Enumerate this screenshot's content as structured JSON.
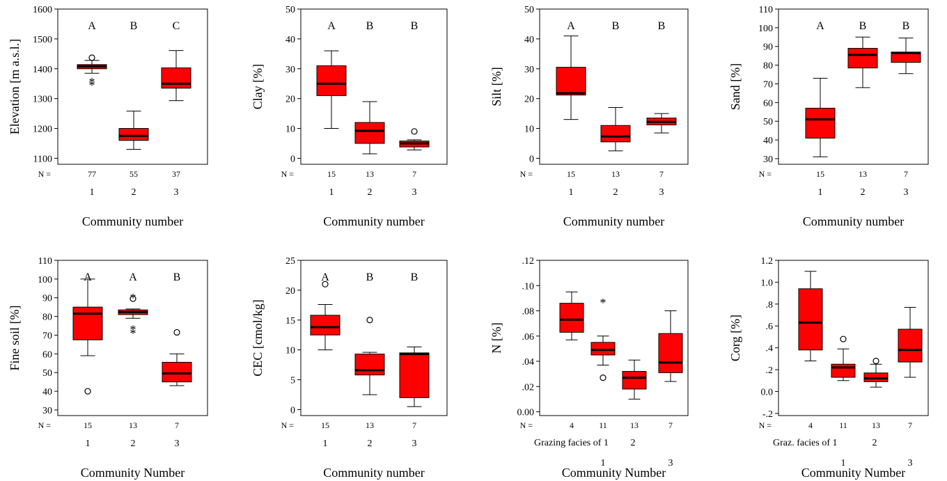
{
  "style": {
    "box_fill": "#ff0000",
    "line_color": "#000000",
    "background": "#ffffff"
  },
  "chart_data": [
    {
      "type": "boxplot",
      "ylabel": "Elevation [m a.s.l.]",
      "xlabel": "Community number",
      "ylim": [
        1080,
        1600
      ],
      "yticks": [
        "1100",
        "1200",
        "1300",
        "1400",
        "1500",
        "1600"
      ],
      "n_label": "N =",
      "x_text": "",
      "groups": [
        {
          "label": "1",
          "n": "77",
          "letter": "A",
          "box": {
            "whisker_low": 1385,
            "q1": 1400,
            "median": 1408,
            "q3": 1414,
            "whisker_high": 1428
          },
          "outliers": [
            1437
          ],
          "extremes": [
            1352,
            1362
          ]
        },
        {
          "label": "2",
          "n": "55",
          "letter": "B",
          "box": {
            "whisker_low": 1130,
            "q1": 1160,
            "median": 1175,
            "q3": 1200,
            "whisker_high": 1258
          },
          "outliers": [],
          "extremes": []
        },
        {
          "label": "3",
          "n": "37",
          "letter": "C",
          "box": {
            "whisker_low": 1293,
            "q1": 1335,
            "median": 1350,
            "q3": 1403,
            "whisker_high": 1461
          },
          "outliers": [],
          "extremes": []
        }
      ]
    },
    {
      "type": "boxplot",
      "ylabel": "Clay [%]",
      "xlabel": "Community number",
      "ylim": [
        -2,
        50
      ],
      "yticks": [
        "0",
        "10",
        "20",
        "30",
        "40",
        "50"
      ],
      "n_label": "N =",
      "x_text": "",
      "groups": [
        {
          "label": "1",
          "n": "15",
          "letter": "A",
          "box": {
            "whisker_low": 10,
            "q1": 21,
            "median": 25,
            "q3": 31,
            "whisker_high": 36
          },
          "outliers": [],
          "extremes": []
        },
        {
          "label": "2",
          "n": "13",
          "letter": "B",
          "box": {
            "whisker_low": 1.5,
            "q1": 5,
            "median": 9.2,
            "q3": 12,
            "whisker_high": 19
          },
          "outliers": [],
          "extremes": []
        },
        {
          "label": "3",
          "n": "7",
          "letter": "B",
          "box": {
            "whisker_low": 2.8,
            "q1": 3.8,
            "median": 5,
            "q3": 5.8,
            "whisker_high": 6.2
          },
          "outliers": [
            9
          ],
          "extremes": []
        }
      ]
    },
    {
      "type": "boxplot",
      "ylabel": "Silt [%]",
      "xlabel": "Community number",
      "ylim": [
        -2,
        50
      ],
      "yticks": [
        "0",
        "10",
        "20",
        "30",
        "40",
        "50"
      ],
      "n_label": "N =",
      "x_text": "",
      "groups": [
        {
          "label": "1",
          "n": "15",
          "letter": "A",
          "box": {
            "whisker_low": 13,
            "q1": 21.2,
            "median": 21.8,
            "q3": 30.5,
            "whisker_high": 41
          },
          "outliers": [],
          "extremes": []
        },
        {
          "label": "2",
          "n": "13",
          "letter": "B",
          "box": {
            "whisker_low": 2.5,
            "q1": 5.5,
            "median": 7.3,
            "q3": 11,
            "whisker_high": 17
          },
          "outliers": [],
          "extremes": []
        },
        {
          "label": "3",
          "n": "7",
          "letter": "B",
          "box": {
            "whisker_low": 8.5,
            "q1": 11.2,
            "median": 12.2,
            "q3": 13.5,
            "whisker_high": 15
          },
          "outliers": [],
          "extremes": []
        }
      ]
    },
    {
      "type": "boxplot",
      "ylabel": "Sand [%]",
      "xlabel": "Community number",
      "ylim": [
        27,
        110
      ],
      "yticks": [
        "30",
        "40",
        "50",
        "60",
        "70",
        "80",
        "90",
        "100",
        "110"
      ],
      "n_label": "N =",
      "x_text": "",
      "groups": [
        {
          "label": "1",
          "n": "15",
          "letter": "A",
          "box": {
            "whisker_low": 31,
            "q1": 41,
            "median": 51,
            "q3": 57,
            "whisker_high": 73
          },
          "outliers": [],
          "extremes": []
        },
        {
          "label": "2",
          "n": "13",
          "letter": "B",
          "box": {
            "whisker_low": 68,
            "q1": 78.5,
            "median": 85.5,
            "q3": 89,
            "whisker_high": 95
          },
          "outliers": [],
          "extremes": []
        },
        {
          "label": "3",
          "n": "7",
          "letter": "B",
          "box": {
            "whisker_low": 75.5,
            "q1": 81.5,
            "median": 86.5,
            "q3": 87,
            "whisker_high": 94.5
          },
          "outliers": [],
          "extremes": []
        }
      ]
    },
    {
      "type": "boxplot",
      "ylabel": "Fine soil [%]",
      "xlabel": "Community Number",
      "ylim": [
        27,
        110
      ],
      "yticks": [
        "30",
        "40",
        "50",
        "60",
        "70",
        "80",
        "90",
        "100",
        "110"
      ],
      "n_label": "N =",
      "x_text": "",
      "groups": [
        {
          "label": "1",
          "n": "15",
          "letter": "A",
          "box": {
            "whisker_low": 59,
            "q1": 67.5,
            "median": 81.5,
            "q3": 85,
            "whisker_high": 100
          },
          "outliers": [
            40
          ],
          "extremes": []
        },
        {
          "label": "2",
          "n": "13",
          "letter": "A",
          "box": {
            "whisker_low": 79,
            "q1": 81,
            "median": 82.3,
            "q3": 83.5,
            "whisker_high": 84
          },
          "outliers": [
            89.5
          ],
          "extremes": [
            72,
            74,
            91
          ]
        },
        {
          "label": "3",
          "n": "7",
          "letter": "B",
          "box": {
            "whisker_low": 43,
            "q1": 45,
            "median": 49.5,
            "q3": 55.5,
            "whisker_high": 60
          },
          "outliers": [
            71.5
          ],
          "extremes": []
        }
      ]
    },
    {
      "type": "boxplot",
      "ylabel": "CEC [cmol/kg]",
      "xlabel": "Community number",
      "ylim": [
        -1,
        25
      ],
      "yticks": [
        "0",
        "5",
        "10",
        "15",
        "20",
        "25"
      ],
      "n_label": "N =",
      "x_text": "",
      "groups": [
        {
          "label": "1",
          "n": "15",
          "letter": "A",
          "box": {
            "whisker_low": 10,
            "q1": 12.5,
            "median": 13.8,
            "q3": 15.8,
            "whisker_high": 17.6
          },
          "outliers": [
            21
          ],
          "extremes": []
        },
        {
          "label": "2",
          "n": "13",
          "letter": "B",
          "box": {
            "whisker_low": 2.5,
            "q1": 5.8,
            "median": 6.6,
            "q3": 9.3,
            "whisker_high": 9.6
          },
          "outliers": [
            15
          ],
          "extremes": []
        },
        {
          "label": "3",
          "n": "7",
          "letter": "B",
          "box": {
            "whisker_low": 0.5,
            "q1": 2,
            "median": 9.3,
            "q3": 9.5,
            "whisker_high": 10.5
          },
          "outliers": [],
          "extremes": []
        }
      ]
    },
    {
      "type": "boxplot",
      "ylabel": "N [%]",
      "xlabel": "Community Number",
      "ylim": [
        -0.003,
        0.12
      ],
      "yticks": [
        "0.00",
        ".02",
        ".04",
        ".06",
        ".08",
        ".10",
        ".12"
      ],
      "n_label": "N =",
      "x_text": "Grazing facies of 1",
      "x_text2": "2",
      "bottom_labels": [
        "1",
        "3"
      ],
      "groups": [
        {
          "label": "",
          "n": "4",
          "letter": "",
          "box": {
            "whisker_low": 0.057,
            "q1": 0.063,
            "median": 0.073,
            "q3": 0.086,
            "whisker_high": 0.095
          },
          "outliers": [],
          "extremes": []
        },
        {
          "label": "",
          "n": "11",
          "letter": "",
          "box": {
            "whisker_low": 0.037,
            "q1": 0.045,
            "median": 0.049,
            "q3": 0.055,
            "whisker_high": 0.06
          },
          "outliers": [
            0.027
          ],
          "extremes": [
            0.088
          ]
        },
        {
          "label": "",
          "n": "13",
          "letter": "",
          "box": {
            "whisker_low": 0.01,
            "q1": 0.018,
            "median": 0.027,
            "q3": 0.032,
            "whisker_high": 0.041
          },
          "outliers": [],
          "extremes": []
        },
        {
          "label": "",
          "n": "7",
          "letter": "",
          "box": {
            "whisker_low": 0.024,
            "q1": 0.031,
            "median": 0.039,
            "q3": 0.062,
            "whisker_high": 0.08
          },
          "outliers": [],
          "extremes": []
        }
      ]
    },
    {
      "type": "boxplot",
      "ylabel": "Corg [%]",
      "xlabel": "Community Number",
      "ylim": [
        -0.22,
        1.2
      ],
      "yticks": [
        "-.2",
        "0.0",
        ".2",
        ".4",
        ".6",
        ".8",
        "1.0",
        "1.2"
      ],
      "n_label": "N =",
      "x_text": "Graz. facies of 1",
      "x_text2": "2",
      "bottom_labels": [
        "1",
        "3"
      ],
      "groups": [
        {
          "label": "",
          "n": "4",
          "letter": "",
          "box": {
            "whisker_low": 0.28,
            "q1": 0.38,
            "median": 0.63,
            "q3": 0.94,
            "whisker_high": 1.1
          },
          "outliers": [],
          "extremes": []
        },
        {
          "label": "",
          "n": "11",
          "letter": "",
          "box": {
            "whisker_low": 0.1,
            "q1": 0.13,
            "median": 0.22,
            "q3": 0.25,
            "whisker_high": 0.39
          },
          "outliers": [
            0.48
          ],
          "extremes": []
        },
        {
          "label": "",
          "n": "13",
          "letter": "",
          "box": {
            "whisker_low": 0.04,
            "q1": 0.09,
            "median": 0.12,
            "q3": 0.17,
            "whisker_high": 0.25
          },
          "outliers": [
            0.28
          ],
          "extremes": []
        },
        {
          "label": "",
          "n": "7",
          "letter": "",
          "box": {
            "whisker_low": 0.13,
            "q1": 0.27,
            "median": 0.38,
            "q3": 0.57,
            "whisker_high": 0.77
          },
          "outliers": [],
          "extremes": []
        }
      ]
    }
  ]
}
